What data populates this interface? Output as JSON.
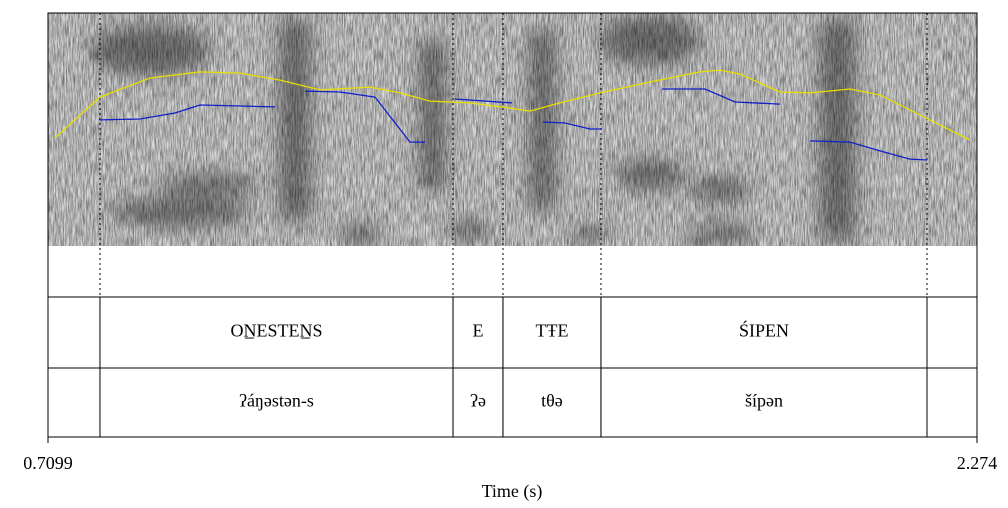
{
  "chart_data": {
    "type": "textgrid",
    "x_label": "Time (s)",
    "xlim": [
      0.7099,
      2.274
    ],
    "xticks": [
      0.7099,
      2.274
    ],
    "ylim": [
      0,
      100
    ],
    "series": [
      {
        "name": "intensity",
        "color": "#e8e000",
        "x": [
          0.7217,
          0.7974,
          0.8816,
          0.9658,
          1.0331,
          1.1005,
          1.1678,
          1.252,
          1.3025,
          1.353,
          1.4203,
          1.4877,
          1.5213,
          1.5718,
          1.6392,
          1.7234,
          1.8075,
          1.8412,
          1.8749,
          1.9422,
          1.9927,
          2.0601,
          2.1106,
          2.1779,
          2.2621
        ],
        "values": [
          46.4,
          63.9,
          72.1,
          74.7,
          74.2,
          71.2,
          67.0,
          68.2,
          65.7,
          62.2,
          61.4,
          59.2,
          57.9,
          61.4,
          65.7,
          70.4,
          74.7,
          75.5,
          73.8,
          66.1,
          65.7,
          67.4,
          64.8,
          56.2,
          45.5
        ]
      },
      {
        "name": "pitch",
        "color": "#1020c8",
        "x": [
          0.7974,
          0.8648,
          0.9237,
          0.9658,
          1.0331,
          1.092,
          1.1173,
          1.1426,
          1.2015,
          1.2604,
          1.3194,
          1.3446,
          1.3698,
          1.3951,
          1.4911,
          1.5163,
          1.5433,
          1.5803,
          1.6224,
          1.6409,
          1.6897,
          1.7436,
          1.816,
          1.8665,
          1.9423,
          1.9675,
          1.9928,
          2.0601,
          2.1106,
          2.1611,
          2.1898
        ],
        "values": [
          54.1,
          54.5,
          57.1,
          60.5,
          60.1,
          59.7,
          null,
          66.5,
          66.1,
          63.9,
          44.6,
          44.6,
          null,
          63.1,
          61.4,
          null,
          53.2,
          52.8,
          50.2,
          50.2,
          null,
          67.4,
          67.4,
          61.8,
          60.9,
          null,
          45.1,
          44.6,
          40.8,
          37.3,
          36.9
        ]
      }
    ],
    "tiers": [
      {
        "intervals": [
          {
            "xmin": 0.7974,
            "xmax": 1.3918,
            "text": "ON̲ESTEN̲S"
          },
          {
            "xmin": 1.3918,
            "xmax": 1.4759,
            "text": "E"
          },
          {
            "xmin": 1.4759,
            "xmax": 1.6409,
            "text": "TŦE"
          },
          {
            "xmin": 1.6409,
            "xmax": 2.1898,
            "text": "ŚIPEN"
          }
        ]
      },
      {
        "intervals": [
          {
            "xmin": 0.7974,
            "xmax": 1.3918,
            "text": "ʔáŋəstən-s"
          },
          {
            "xmin": 1.3918,
            "xmax": 1.4759,
            "text": "ʔə"
          },
          {
            "xmin": 1.4759,
            "xmax": 1.6409,
            "text": "tθə"
          },
          {
            "xmin": 1.6409,
            "xmax": 2.1898,
            "text": "šípən"
          }
        ]
      }
    ]
  }
}
